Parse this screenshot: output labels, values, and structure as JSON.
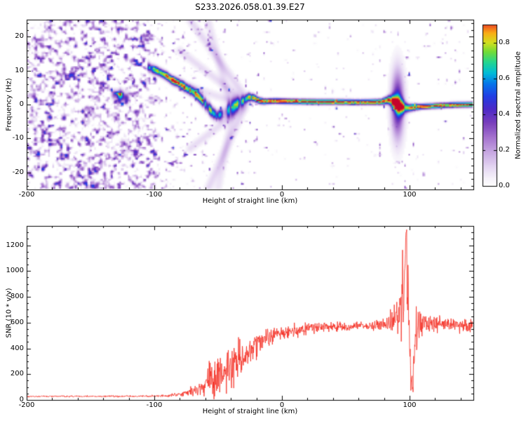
{
  "figure": {
    "title": "S233.2026.058.01.39.E27",
    "background": "#ffffff"
  },
  "chart_data": [
    {
      "type": "heatmap",
      "title": "S233.2026.058.01.39.E27",
      "xlabel": "Height of straight line (km)",
      "ylabel": "Frequency (Hz)",
      "xlim": [
        -200,
        150
      ],
      "ylim": [
        -25,
        25
      ],
      "xticks": [
        -200,
        -100,
        0,
        100
      ],
      "yticks": [
        -20,
        -10,
        0,
        10,
        20
      ],
      "xminor_step": 20,
      "yminor_step": 2,
      "colorbar": {
        "label": "Normalized spectral amplitude",
        "ticks": [
          "0.0",
          "0.2",
          "0.4",
          "0.6",
          "0.8"
        ],
        "tick_values": [
          0,
          0.2,
          0.4,
          0.6,
          0.8
        ],
        "vmax": 0.9
      },
      "colormap": {
        "columns": [
          "value",
          "r",
          "g",
          "b"
        ],
        "stops": [
          [
            0.0,
            255,
            255,
            255
          ],
          [
            0.04,
            246,
            242,
            250
          ],
          [
            0.1,
            230,
            216,
            243
          ],
          [
            0.18,
            202,
            172,
            228
          ],
          [
            0.27,
            165,
            115,
            207
          ],
          [
            0.35,
            122,
            64,
            188
          ],
          [
            0.43,
            76,
            42,
            200
          ],
          [
            0.5,
            34,
            62,
            228
          ],
          [
            0.57,
            6,
            118,
            235
          ],
          [
            0.63,
            0,
            188,
            216
          ],
          [
            0.69,
            36,
            214,
            145
          ],
          [
            0.75,
            116,
            220,
            55
          ],
          [
            0.8,
            210,
            224,
            32
          ],
          [
            0.855,
            250,
            172,
            22
          ],
          [
            0.905,
            236,
            62,
            36
          ],
          [
            1.0,
            196,
            2,
            44
          ]
        ]
      },
      "trace": {
        "columns": [
          "h_km",
          "freq_hz",
          "amplitude",
          "width_hz"
        ],
        "points": [
          [
            -106,
            11.5,
            0.35,
            1.0
          ],
          [
            -102,
            10.5,
            0.6,
            0.9
          ],
          [
            -98,
            10,
            0.75,
            0.8
          ],
          [
            -94,
            9.2,
            0.8,
            0.8
          ],
          [
            -90,
            8.4,
            0.85,
            0.8
          ],
          [
            -86,
            7.2,
            0.8,
            0.8
          ],
          [
            -82,
            6.6,
            0.85,
            0.8
          ],
          [
            -78,
            5.6,
            0.8,
            0.9
          ],
          [
            -74,
            4.6,
            0.82,
            0.9
          ],
          [
            -70,
            3.8,
            0.8,
            0.9
          ],
          [
            -66,
            2.6,
            0.78,
            1.0
          ],
          [
            -62,
            1.0,
            0.72,
            1.1
          ],
          [
            -58,
            -0.8,
            0.68,
            1.2
          ],
          [
            -54,
            -2.6,
            0.7,
            1.1
          ],
          [
            -50,
            -3.2,
            0.74,
            1.0
          ],
          [
            -46,
            -2.6,
            0.7,
            1.2
          ],
          [
            -42,
            -1.6,
            0.62,
            1.5
          ],
          [
            -38,
            -0.6,
            0.6,
            1.6
          ],
          [
            -34,
            0.4,
            0.66,
            1.2
          ],
          [
            -30,
            1.2,
            0.78,
            0.9
          ],
          [
            -26,
            2.2,
            0.84,
            0.8
          ],
          [
            -22,
            2.0,
            0.86,
            0.7
          ],
          [
            -18,
            1.2,
            0.88,
            0.6
          ],
          [
            -14,
            0.9,
            0.9,
            0.55
          ],
          [
            -10,
            1.0,
            0.94,
            0.5
          ],
          [
            -5,
            1.1,
            0.95,
            0.5
          ],
          [
            0,
            1.0,
            0.95,
            0.5
          ],
          [
            10,
            0.9,
            0.95,
            0.5
          ],
          [
            20,
            0.85,
            0.95,
            0.5
          ],
          [
            30,
            0.8,
            0.95,
            0.5
          ],
          [
            40,
            0.8,
            0.95,
            0.5
          ],
          [
            50,
            0.75,
            0.95,
            0.5
          ],
          [
            60,
            0.7,
            0.95,
            0.5
          ],
          [
            70,
            0.75,
            0.95,
            0.5
          ],
          [
            78,
            0.8,
            0.94,
            0.55
          ],
          [
            84,
            1.4,
            0.9,
            0.8
          ],
          [
            88,
            0.8,
            0.85,
            1.3
          ],
          [
            91,
            0.0,
            0.8,
            1.8
          ],
          [
            94,
            -0.6,
            0.75,
            1.6
          ],
          [
            97,
            -0.9,
            0.7,
            1.0
          ],
          [
            100,
            -1.0,
            0.8,
            0.7
          ],
          [
            105,
            -0.8,
            0.88,
            0.6
          ],
          [
            110,
            -0.6,
            0.92,
            0.5
          ],
          [
            120,
            -0.4,
            0.93,
            0.5
          ],
          [
            135,
            -0.1,
            0.93,
            0.5
          ],
          [
            150,
            0.0,
            0.93,
            0.5
          ]
        ]
      },
      "blobs": {
        "columns": [
          "h_km",
          "freq_hz",
          "amplitude",
          "sigma_h",
          "sigma_f"
        ],
        "points": [
          [
            -127,
            2.6,
            0.72,
            2.0,
            1.1
          ],
          [
            -122,
            1.8,
            0.4,
            1.6,
            1.0
          ],
          [
            -132,
            3.0,
            0.3,
            1.5,
            1.0
          ]
        ]
      },
      "streaks": {
        "columns": [
          "h1",
          "f1",
          "h2",
          "f2",
          "amplitude"
        ],
        "points": [
          [
            -30,
            3,
            -72,
            25,
            0.1
          ],
          [
            -33,
            2,
            -80,
            16,
            0.09
          ],
          [
            -35,
            0.5,
            -86,
            7,
            0.08
          ],
          [
            -31,
            -1,
            -72,
            -13,
            0.09
          ],
          [
            -29,
            -0.5,
            -58,
            -25,
            0.1
          ],
          [
            -42,
            2,
            -58,
            25,
            0.08
          ],
          [
            -38,
            -1,
            -50,
            -25,
            0.07
          ]
        ]
      },
      "burst": {
        "h": 91,
        "sigma_h": 3.5,
        "sigma_f": 7,
        "amp": 0.45
      },
      "chaotic_range": [
        -62,
        -28
      ],
      "noise_density": {
        "columns": [
          "h_km",
          "density"
        ],
        "points": [
          [
            -200,
            1
          ],
          [
            -104,
            1
          ],
          [
            -92,
            0.42
          ],
          [
            -60,
            0.22
          ],
          [
            -40,
            0.12
          ],
          [
            -25,
            0.05
          ],
          [
            0,
            0.02
          ],
          [
            70,
            0.015
          ],
          [
            85,
            0.05
          ],
          [
            100,
            0.05
          ],
          [
            112,
            0.02
          ],
          [
            150,
            0.02
          ]
        ]
      }
    },
    {
      "type": "line",
      "xlabel": "Height of straight line (km)",
      "ylabel": "SNR (10 * v/v)",
      "xlim": [
        -200,
        150
      ],
      "ylim": [
        0,
        1350
      ],
      "xticks": [
        -200,
        -100,
        0,
        100
      ],
      "yticks": [
        0,
        200,
        400,
        600,
        800,
        1000,
        1200
      ],
      "xminor_step": 20,
      "yminor_step": 50,
      "color": "#f42a1e",
      "step": 0.25,
      "envelope": {
        "columns": [
          "h_km",
          "snr_base",
          "noise_amp"
        ],
        "points": [
          [
            -200,
            28,
            5
          ],
          [
            -150,
            28,
            5
          ],
          [
            -115,
            28,
            6
          ],
          [
            -100,
            30,
            7
          ],
          [
            -90,
            34,
            9
          ],
          [
            -82,
            40,
            14
          ],
          [
            -76,
            50,
            22
          ],
          [
            -70,
            65,
            35
          ],
          [
            -65,
            85,
            55
          ],
          [
            -60,
            120,
            85
          ],
          [
            -56,
            150,
            105
          ],
          [
            -52,
            185,
            125
          ],
          [
            -48,
            215,
            135
          ],
          [
            -44,
            245,
            140
          ],
          [
            -40,
            270,
            140
          ],
          [
            -36,
            300,
            135
          ],
          [
            -32,
            330,
            125
          ],
          [
            -28,
            360,
            110
          ],
          [
            -24,
            395,
            95
          ],
          [
            -20,
            425,
            85
          ],
          [
            -16,
            450,
            75
          ],
          [
            -12,
            475,
            65
          ],
          [
            -8,
            495,
            58
          ],
          [
            -4,
            510,
            52
          ],
          [
            0,
            520,
            48
          ],
          [
            8,
            535,
            44
          ],
          [
            16,
            548,
            40
          ],
          [
            24,
            558,
            36
          ],
          [
            32,
            563,
            32
          ],
          [
            40,
            567,
            30
          ],
          [
            50,
            570,
            28
          ],
          [
            60,
            573,
            28
          ],
          [
            70,
            576,
            30
          ],
          [
            78,
            580,
            35
          ],
          [
            83,
            590,
            55
          ],
          [
            86,
            620,
            90
          ],
          [
            89,
            660,
            130
          ],
          [
            92,
            720,
            180
          ],
          [
            94,
            780,
            220
          ],
          [
            96,
            900,
            260
          ],
          [
            97,
            1150,
            150
          ],
          [
            97.5,
            1300,
            30
          ],
          [
            98,
            1000,
            250
          ],
          [
            99,
            650,
            300
          ],
          [
            100,
            350,
            220
          ],
          [
            101,
            160,
            90
          ],
          [
            102,
            140,
            90
          ],
          [
            103,
            220,
            160
          ],
          [
            104,
            400,
            250
          ],
          [
            105,
            550,
            250
          ],
          [
            106,
            650,
            200
          ],
          [
            107,
            600,
            150
          ],
          [
            108,
            620,
            120
          ],
          [
            110,
            600,
            90
          ],
          [
            113,
            590,
            65
          ],
          [
            118,
            585,
            50
          ],
          [
            125,
            582,
            45
          ],
          [
            135,
            580,
            42
          ],
          [
            150,
            578,
            40
          ]
        ]
      },
      "spike": {
        "h": 97.4,
        "half_width": 0.35,
        "min": 1290,
        "max": 1330
      }
    }
  ]
}
